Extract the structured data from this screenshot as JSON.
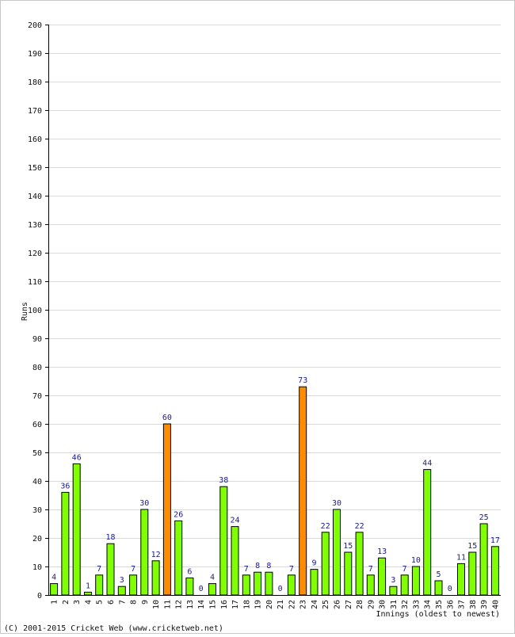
{
  "chart_data": {
    "type": "bar",
    "ylabel": "Runs",
    "xlabel": "Innings (oldest to newest)",
    "ylim": [
      0,
      200
    ],
    "yticks": [
      0,
      10,
      20,
      30,
      40,
      50,
      60,
      70,
      80,
      90,
      100,
      110,
      120,
      130,
      140,
      150,
      160,
      170,
      180,
      190,
      200
    ],
    "grid": true,
    "categories": [
      "1",
      "2",
      "3",
      "4",
      "5",
      "6",
      "7",
      "8",
      "9",
      "10",
      "11",
      "12",
      "13",
      "14",
      "15",
      "16",
      "17",
      "18",
      "19",
      "20",
      "21",
      "22",
      "23",
      "24",
      "25",
      "26",
      "27",
      "28",
      "29",
      "30",
      "31",
      "32",
      "33",
      "34",
      "35",
      "36",
      "37",
      "38",
      "39",
      "40"
    ],
    "values": [
      4,
      36,
      46,
      1,
      7,
      18,
      3,
      7,
      30,
      12,
      60,
      26,
      6,
      0,
      4,
      38,
      24,
      7,
      8,
      8,
      0,
      7,
      73,
      9,
      22,
      30,
      15,
      22,
      7,
      13,
      3,
      7,
      10,
      44,
      5,
      0,
      11,
      15,
      25,
      17
    ],
    "highlight_indices": [
      10,
      22
    ],
    "colors": {
      "bar": "#7fff00",
      "highlight": "#ff8c00",
      "bar_stroke": "#000000",
      "grid": "#d9d9d9",
      "data_label": "#1a1a8c"
    }
  },
  "footer": {
    "copyright": "(C) 2001-2015 Cricket Web (www.cricketweb.net)"
  }
}
